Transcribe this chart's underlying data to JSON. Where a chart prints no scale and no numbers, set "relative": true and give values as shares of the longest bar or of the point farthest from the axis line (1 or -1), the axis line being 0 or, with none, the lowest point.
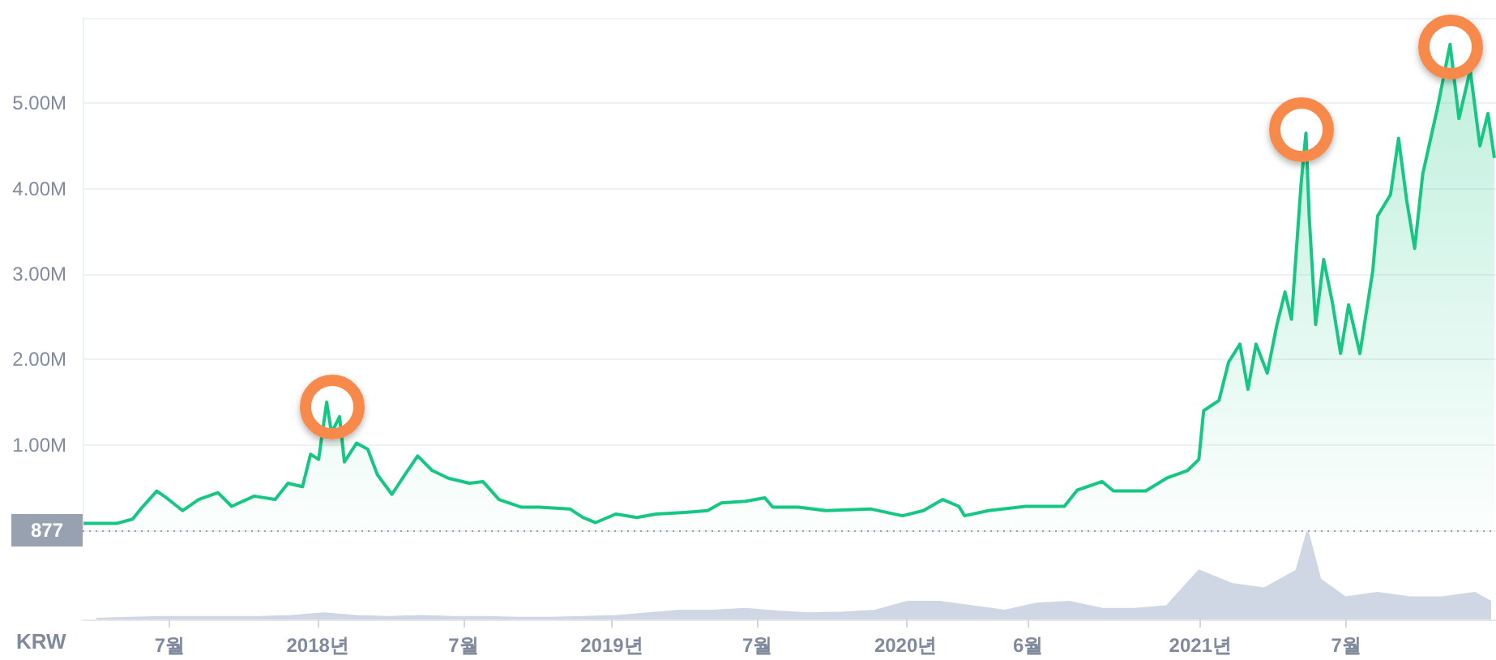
{
  "chart_data": [
    {
      "type": "area",
      "ylabel": "KRW",
      "tick_labels": "y",
      "xlim": [
        "2017-03-15",
        "2022-01-03"
      ],
      "ylim": [
        0,
        6000000
      ],
      "yticks": [
        {
          "value": 1000000,
          "label": "1.00M"
        },
        {
          "value": 2000000,
          "label": "2.00M"
        },
        {
          "value": 3000000,
          "label": "3.00M"
        },
        {
          "value": 4000000,
          "label": "4.00M"
        },
        {
          "value": 5000000,
          "label": "5.00M"
        }
      ],
      "grid": "y",
      "marker": "none",
      "line_style": "solid",
      "ref_lines": [
        {
          "axis": "y",
          "value": 877,
          "label": "877",
          "line_style": "dotted",
          "color": "#98a1b0"
        }
      ],
      "series": [
        {
          "color": "#16c784",
          "x": [
            "2017-03-16",
            "2017-04-26",
            "2017-05-16",
            "2017-05-28",
            "2017-06-15",
            "2017-06-27",
            "2017-07-17",
            "2017-08-06",
            "2017-08-30",
            "2017-09-16",
            "2017-10-14",
            "2017-11-09",
            "2017-11-25",
            "2017-12-13",
            "2017-12-23",
            "2018-01-02",
            "2018-01-12",
            "2018-01-18",
            "2018-01-28",
            "2018-02-03",
            "2018-02-18",
            "2018-03-04",
            "2018-03-16",
            "2018-04-03",
            "2018-04-19",
            "2018-05-05",
            "2018-05-23",
            "2018-06-12",
            "2018-07-08",
            "2018-07-25",
            "2018-08-14",
            "2018-09-11",
            "2018-10-03",
            "2018-11-10",
            "2018-11-26",
            "2018-12-12",
            "2019-01-06",
            "2019-02-01",
            "2019-02-25",
            "2019-04-02",
            "2019-04-30",
            "2019-05-17",
            "2019-06-16",
            "2019-07-10",
            "2019-07-20",
            "2019-08-21",
            "2019-09-24",
            "2019-11-18",
            "2019-12-28",
            "2020-01-23",
            "2020-02-16",
            "2020-03-07",
            "2020-03-14",
            "2020-04-13",
            "2020-05-29",
            "2020-07-16",
            "2020-08-01",
            "2020-09-01",
            "2020-09-15",
            "2020-10-25",
            "2020-11-20",
            "2020-12-16",
            "2020-12-30",
            "2021-01-05",
            "2021-01-24",
            "2021-02-05",
            "2021-02-19",
            "2021-03-01",
            "2021-03-11",
            "2021-03-25",
            "2021-04-06",
            "2021-04-16",
            "2021-04-24",
            "2021-05-06",
            "2021-05-12",
            "2021-05-16",
            "2021-05-24",
            "2021-06-03",
            "2021-06-14",
            "2021-06-24",
            "2021-07-04",
            "2021-07-18",
            "2021-08-03",
            "2021-08-09",
            "2021-08-25",
            "2021-09-04",
            "2021-09-14",
            "2021-09-24",
            "2021-10-04",
            "2021-10-22",
            "2021-11-07",
            "2021-11-18",
            "2021-12-02",
            "2021-12-14",
            "2021-12-24",
            "2022-01-01"
          ],
          "values": [
            80000,
            80000,
            130000,
            270000,
            460000,
            380000,
            230000,
            360000,
            440000,
            280000,
            400000,
            360000,
            550000,
            510000,
            890000,
            830000,
            1500000,
            1140000,
            1330000,
            800000,
            1020000,
            950000,
            650000,
            420000,
            650000,
            870000,
            700000,
            610000,
            550000,
            570000,
            360000,
            270000,
            270000,
            250000,
            150000,
            90000,
            190000,
            150000,
            190000,
            210000,
            230000,
            320000,
            340000,
            380000,
            270000,
            270000,
            230000,
            250000,
            170000,
            230000,
            360000,
            280000,
            170000,
            230000,
            280000,
            280000,
            470000,
            570000,
            460000,
            460000,
            610000,
            700000,
            830000,
            1400000,
            1520000,
            1970000,
            2180000,
            1650000,
            2180000,
            1840000,
            2410000,
            2790000,
            2470000,
            4060000,
            4650000,
            3680000,
            2410000,
            3170000,
            2660000,
            2070000,
            2640000,
            2070000,
            3040000,
            3680000,
            3930000,
            4590000,
            3870000,
            3300000,
            4170000,
            4930000,
            5690000,
            4820000,
            5390000,
            4500000,
            4880000,
            4360000
          ]
        }
      ]
    },
    {
      "type": "area",
      "relative": true,
      "tick_labels": "x",
      "xlim": [
        "2017-03-15",
        "2022-01-03"
      ],
      "xticks": [
        {
          "value": "2017-07-01",
          "label": "7월"
        },
        {
          "value": "2018-01-01",
          "label": "2018년"
        },
        {
          "value": "2018-07-01",
          "label": "7월"
        },
        {
          "value": "2019-01-01",
          "label": "2019년"
        },
        {
          "value": "2019-07-01",
          "label": "7월"
        },
        {
          "value": "2020-01-01",
          "label": "2020년"
        },
        {
          "value": "2020-06-01",
          "label": "6월"
        },
        {
          "value": "2021-01-01",
          "label": "2021년"
        },
        {
          "value": "2021-07-01",
          "label": "7월"
        }
      ],
      "series": [
        {
          "color": "#cfd6e4",
          "x": [
            "2017-04-01",
            "2017-05-12",
            "2017-06-21",
            "2017-07-31",
            "2017-09-09",
            "2017-10-20",
            "2017-11-29",
            "2018-01-08",
            "2018-02-18",
            "2018-03-30",
            "2018-05-09",
            "2018-06-18",
            "2018-07-29",
            "2018-09-07",
            "2018-10-17",
            "2018-11-26",
            "2019-01-06",
            "2019-02-15",
            "2019-03-27",
            "2019-05-06",
            "2019-06-16",
            "2019-07-26",
            "2019-09-04",
            "2019-10-15",
            "2019-11-24",
            "2020-01-03",
            "2020-02-12",
            "2020-03-24",
            "2020-05-03",
            "2020-06-12",
            "2020-07-22",
            "2020-09-01",
            "2020-10-11",
            "2020-11-20",
            "2020-12-30",
            "2021-02-09",
            "2021-03-21",
            "2021-04-30",
            "2021-05-14",
            "2021-05-30",
            "2021-06-30",
            "2021-08-09",
            "2021-09-18",
            "2021-10-28",
            "2021-12-08",
            "2021-12-28"
          ],
          "values": [
            0.01,
            0.02,
            0.03,
            0.03,
            0.03,
            0.03,
            0.04,
            0.07,
            0.04,
            0.03,
            0.04,
            0.03,
            0.03,
            0.02,
            0.02,
            0.03,
            0.04,
            0.07,
            0.1,
            0.1,
            0.12,
            0.09,
            0.07,
            0.08,
            0.1,
            0.2,
            0.2,
            0.15,
            0.1,
            0.18,
            0.2,
            0.12,
            0.12,
            0.15,
            0.55,
            0.4,
            0.35,
            0.55,
            1,
            0.45,
            0.25,
            0.3,
            0.25,
            0.25,
            0.3,
            0.2
          ]
        }
      ]
    }
  ]
}
